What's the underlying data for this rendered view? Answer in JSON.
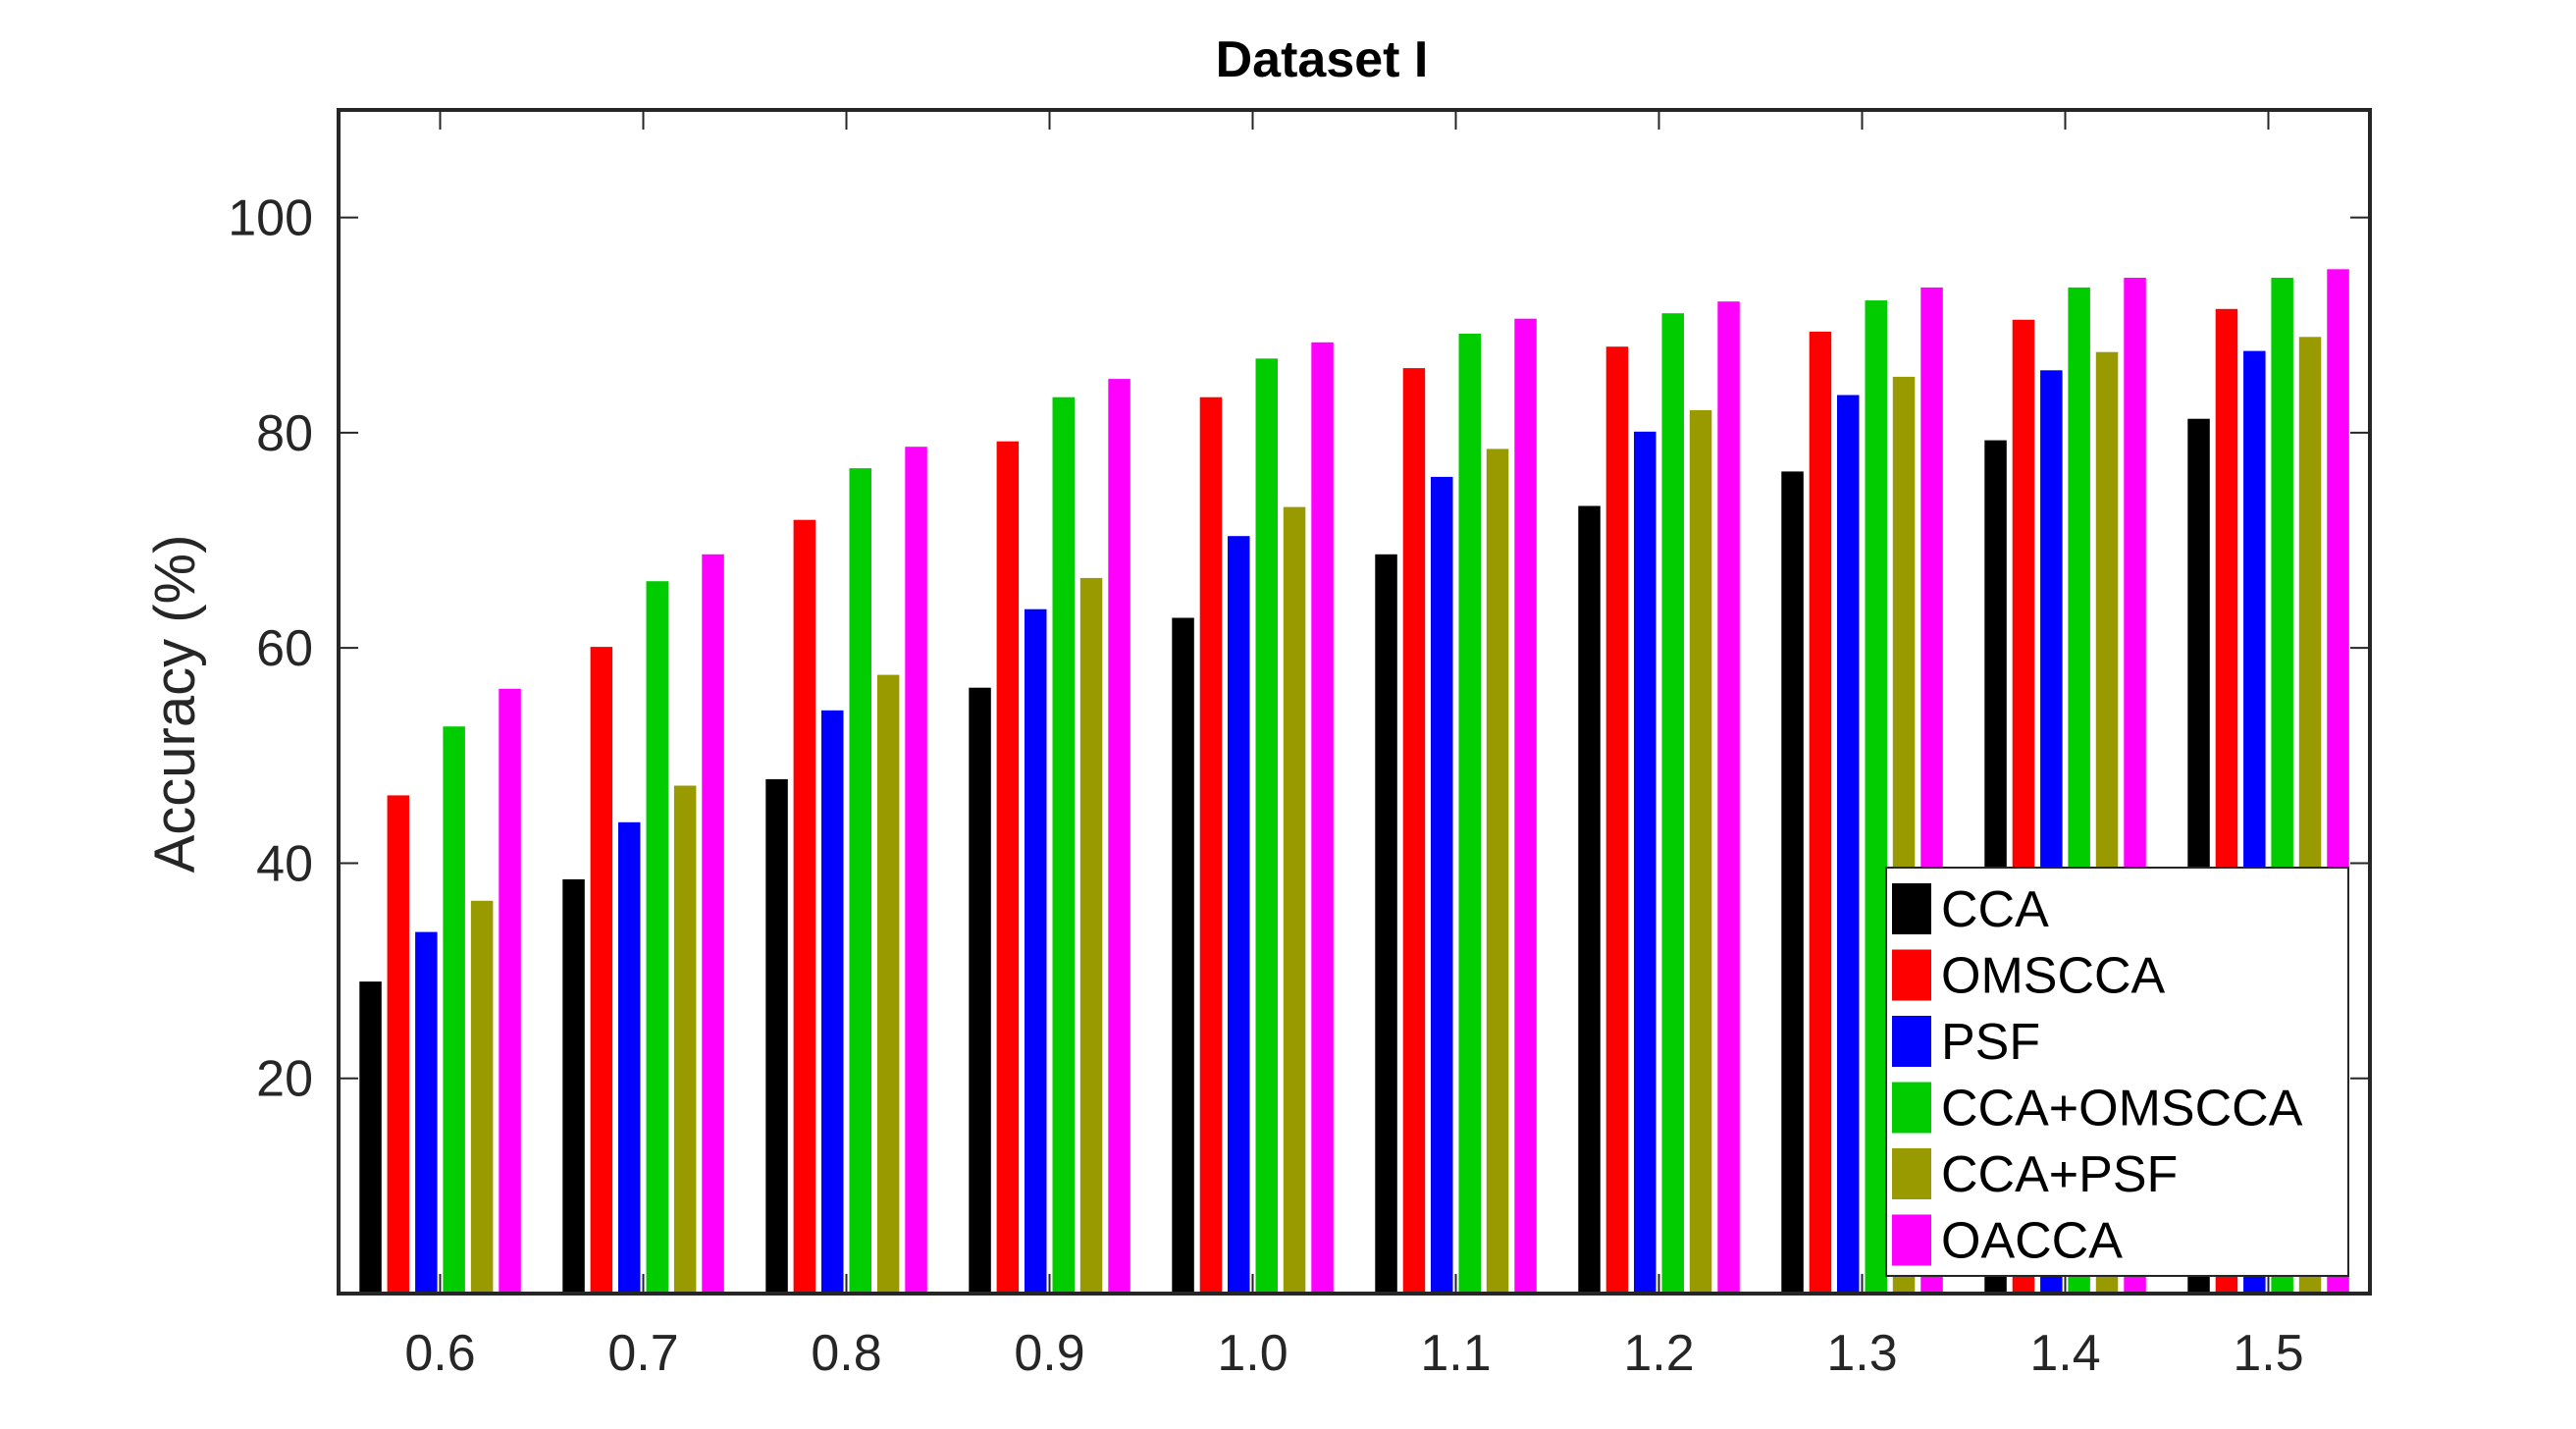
{
  "chart_data": {
    "type": "bar",
    "title": "Dataset I",
    "xlabel": "",
    "ylabel": "Accuracy (%)",
    "ylim": [
      0,
      110
    ],
    "yticks": [
      20,
      40,
      60,
      80,
      100
    ],
    "categories": [
      "0.6",
      "0.7",
      "0.8",
      "0.9",
      "1.0",
      "1.1",
      "1.2",
      "1.3",
      "1.4",
      "1.5"
    ],
    "series": [
      {
        "name": "CCA",
        "color": "#000000",
        "values": [
          29.0,
          38.5,
          47.8,
          56.3,
          62.8,
          68.7,
          73.2,
          76.4,
          79.3,
          81.3
        ]
      },
      {
        "name": "OMSCCA",
        "color": "#ff0000",
        "values": [
          46.3,
          60.1,
          71.9,
          79.2,
          83.3,
          86.0,
          88.0,
          89.4,
          90.5,
          91.5
        ]
      },
      {
        "name": "PSF",
        "color": "#0000ff",
        "values": [
          33.6,
          43.8,
          54.2,
          63.6,
          70.4,
          75.9,
          80.1,
          83.5,
          85.8,
          87.6
        ]
      },
      {
        "name": "CCA+OMSCCA",
        "color": "#00cc00",
        "values": [
          52.7,
          66.2,
          76.7,
          83.3,
          86.9,
          89.2,
          91.1,
          92.3,
          93.5,
          94.4
        ]
      },
      {
        "name": "CCA+PSF",
        "color": "#999900",
        "values": [
          36.5,
          47.2,
          57.5,
          66.5,
          73.1,
          78.5,
          82.1,
          85.2,
          87.5,
          88.9
        ]
      },
      {
        "name": "OACCA",
        "color": "#ff00ff",
        "values": [
          56.2,
          68.7,
          78.7,
          85.0,
          88.4,
          90.6,
          92.2,
          93.5,
          94.4,
          95.2
        ]
      }
    ],
    "grid": false,
    "legend_position": "bottom-right"
  }
}
